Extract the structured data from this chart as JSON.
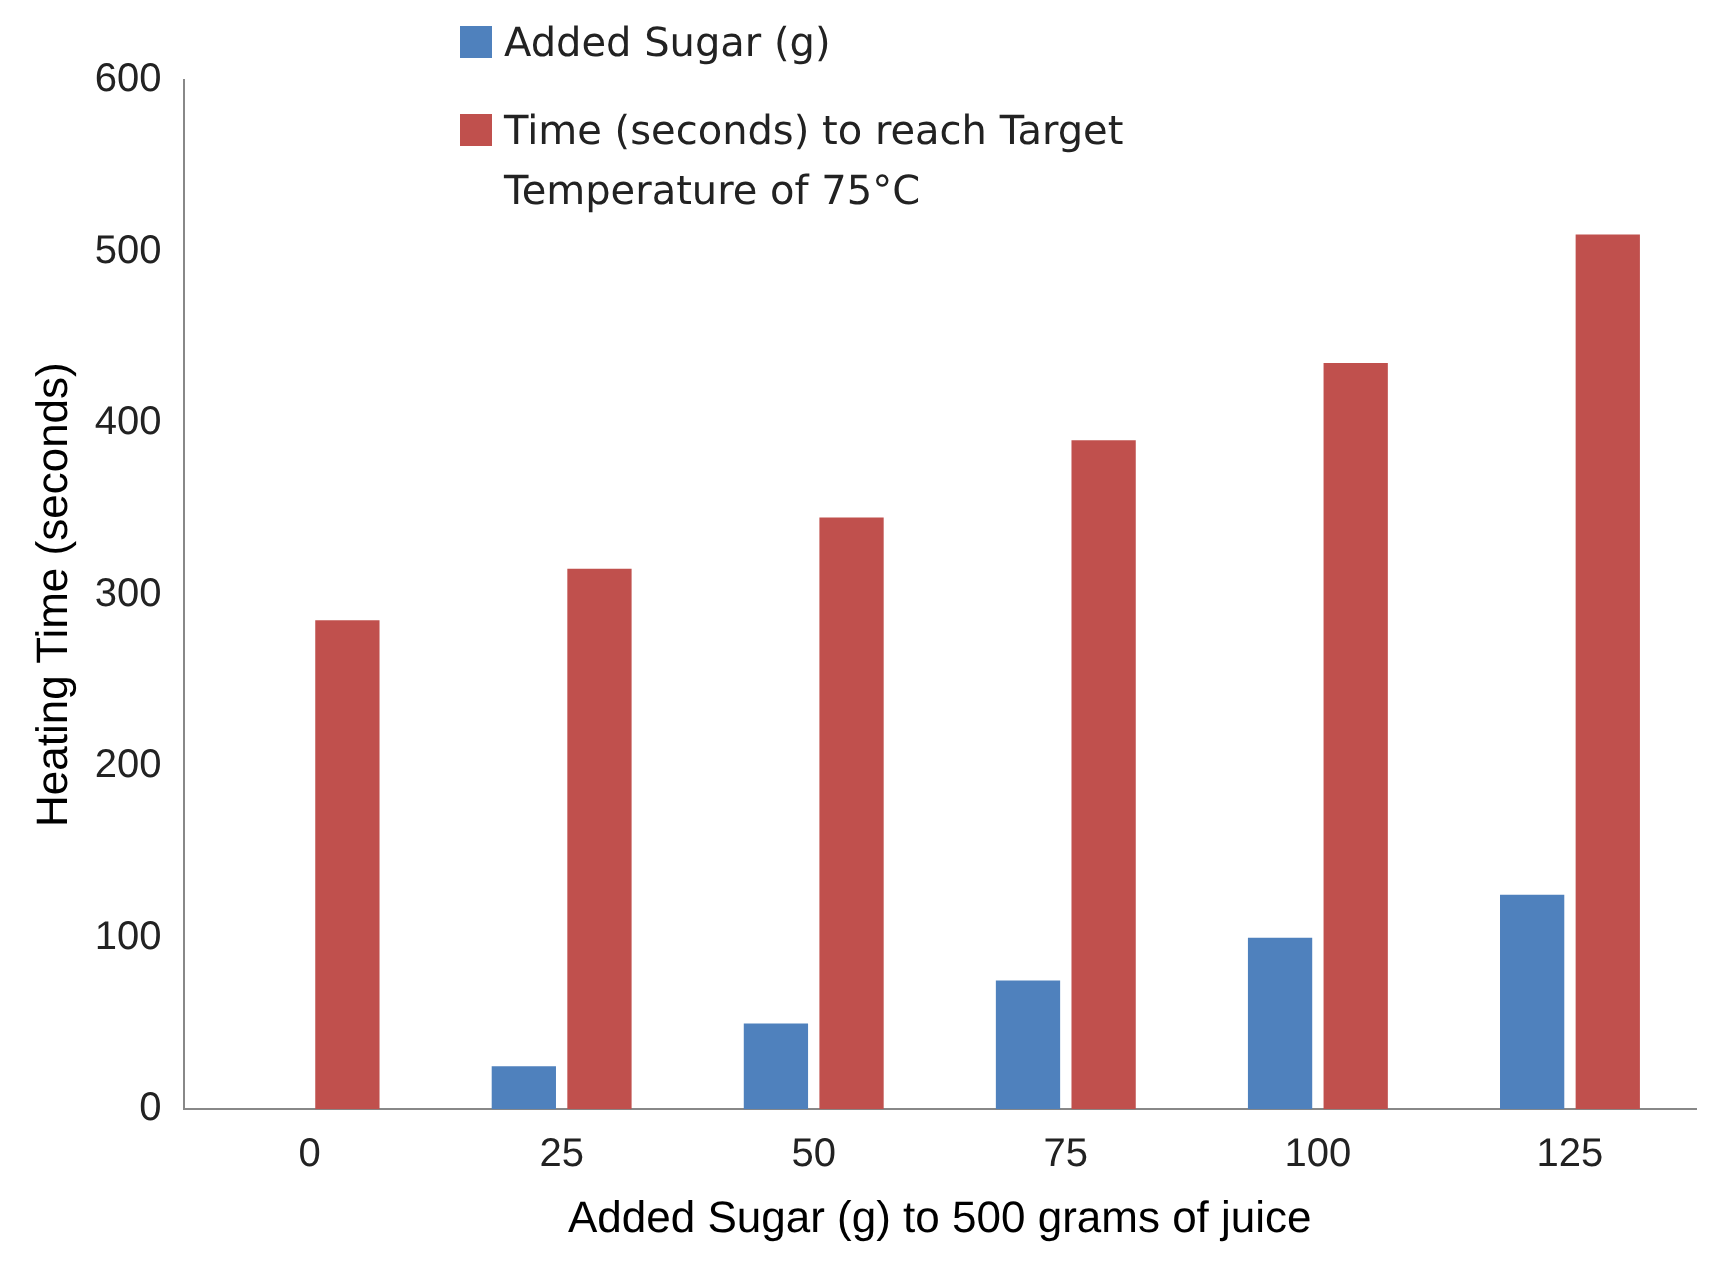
{
  "chart_data": {
    "type": "bar",
    "xlabel": "Added Sugar (g) to 500 grams of juice",
    "ylabel": "Heating Time (seconds)",
    "categories": [
      "0",
      "25",
      "50",
      "75",
      "100",
      "125"
    ],
    "series": [
      {
        "name": "Added Sugar (g)",
        "color": "#4f81bd",
        "values": [
          0,
          25,
          50,
          75,
          100,
          125
        ]
      },
      {
        "name": "Time (seconds) to reach Target Temperature of 75°C",
        "color": "#c0504d",
        "values": [
          285,
          315,
          345,
          390,
          435,
          510
        ]
      }
    ],
    "ylim": [
      0,
      600
    ],
    "yticks": [
      0,
      100,
      200,
      300,
      400,
      500,
      600
    ],
    "grid": false,
    "legend": "top"
  }
}
